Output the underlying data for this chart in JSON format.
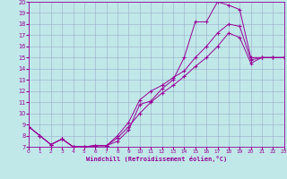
{
  "bg_color": "#c0e8e8",
  "line_color": "#990099",
  "grid_color": "#99aacc",
  "xlim": [
    0,
    23
  ],
  "ylim": [
    7,
    20
  ],
  "xticks": [
    0,
    1,
    2,
    3,
    4,
    5,
    6,
    7,
    8,
    9,
    10,
    11,
    12,
    13,
    14,
    15,
    16,
    17,
    18,
    19,
    20,
    21,
    22,
    23
  ],
  "yticks": [
    7,
    8,
    9,
    10,
    11,
    12,
    13,
    14,
    15,
    16,
    17,
    18,
    19,
    20
  ],
  "xlabel": "Windchill (Refroidissement éolien,°C)",
  "line1_x": [
    0,
    1,
    2,
    3,
    4,
    5,
    6,
    7,
    8,
    9,
    10,
    11,
    12,
    13,
    14,
    15,
    16,
    17,
    18,
    19,
    20,
    21,
    22,
    23
  ],
  "line1_y": [
    8.8,
    8.0,
    7.2,
    7.7,
    7.0,
    7.0,
    7.1,
    7.1,
    7.5,
    8.5,
    10.8,
    11.1,
    12.2,
    13.0,
    15.0,
    18.2,
    18.2,
    20.0,
    19.7,
    19.3,
    15.0,
    15.0,
    15.0,
    15.0
  ],
  "line2_x": [
    0,
    1,
    2,
    3,
    4,
    5,
    6,
    7,
    8,
    9,
    10,
    11,
    12,
    13,
    14,
    15,
    16,
    17,
    18,
    19,
    20,
    21,
    22,
    23
  ],
  "line2_y": [
    8.8,
    8.0,
    7.2,
    7.7,
    7.0,
    7.0,
    7.1,
    7.1,
    8.0,
    9.2,
    11.2,
    12.0,
    12.5,
    13.2,
    13.8,
    15.0,
    16.0,
    17.2,
    18.0,
    17.8,
    14.8,
    15.0,
    15.0,
    15.0
  ],
  "line3_x": [
    0,
    1,
    2,
    3,
    4,
    5,
    6,
    7,
    8,
    9,
    10,
    11,
    12,
    13,
    14,
    15,
    16,
    17,
    18,
    19,
    20,
    21,
    22,
    23
  ],
  "line3_y": [
    8.8,
    8.0,
    7.2,
    7.7,
    7.0,
    7.0,
    7.1,
    7.1,
    7.8,
    8.8,
    10.0,
    11.0,
    11.8,
    12.5,
    13.3,
    14.2,
    15.0,
    16.0,
    17.2,
    16.8,
    14.5,
    15.0,
    15.0,
    15.0
  ]
}
